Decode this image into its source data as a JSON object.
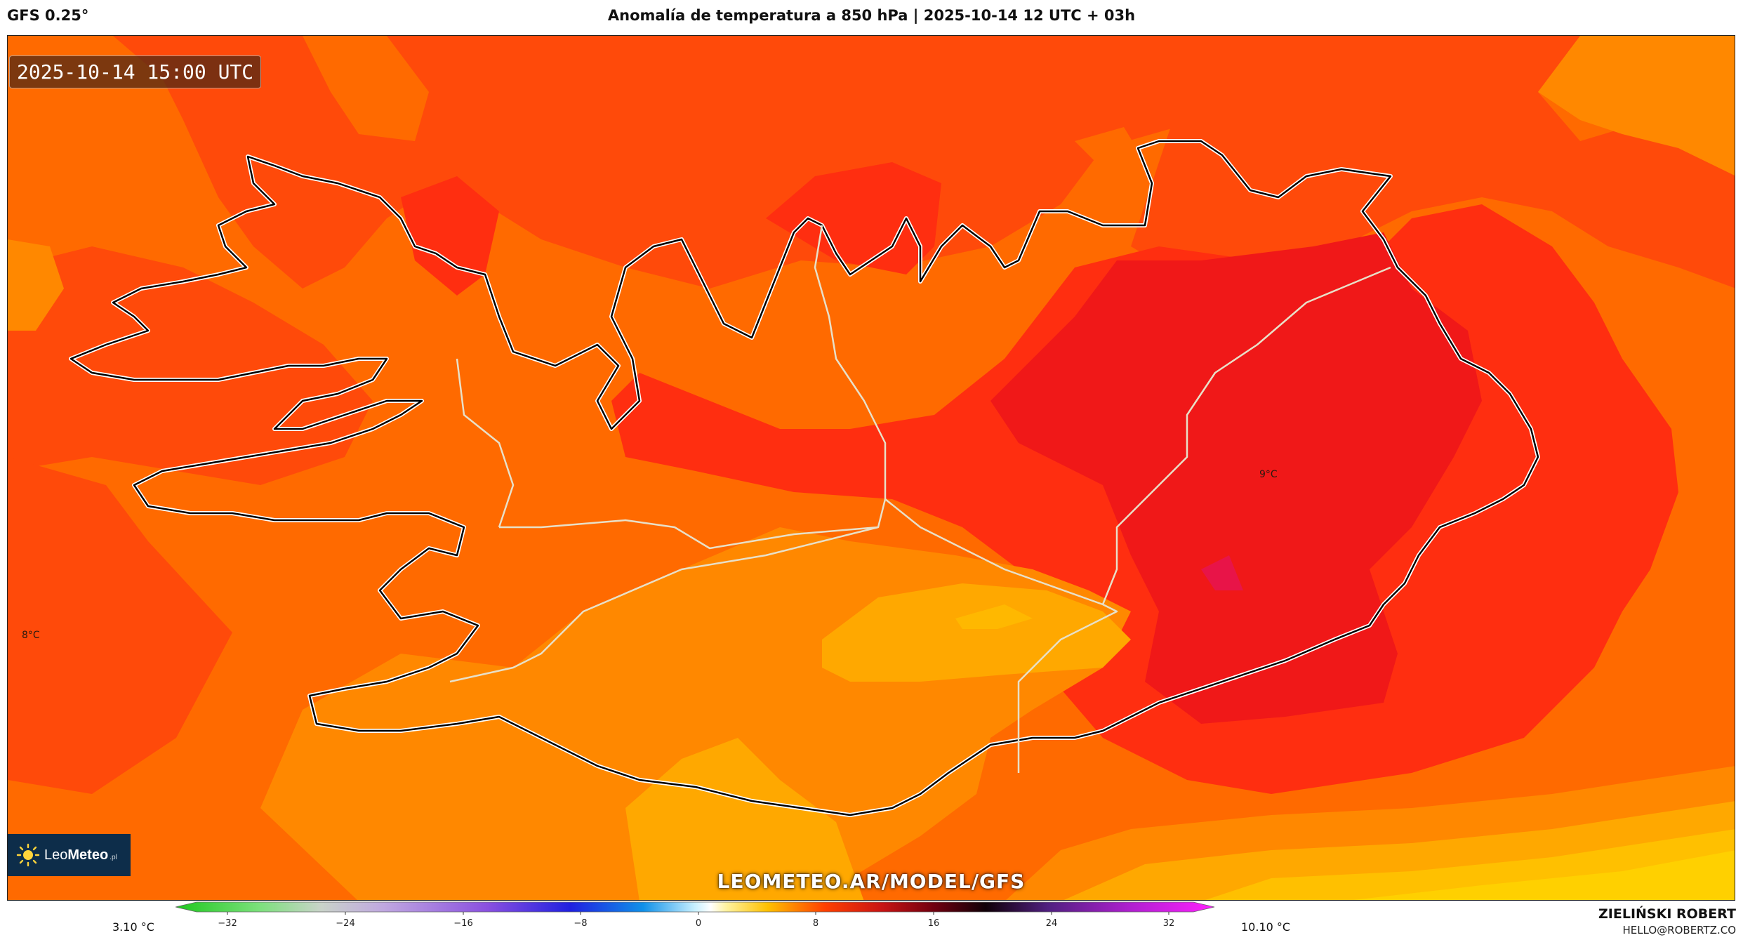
{
  "header": {
    "model": "GFS 0.25°",
    "title": "Anomalía de temperatura a 850 hPa | 2025-10-14 12 UTC + 03h"
  },
  "map": {
    "timestamp": "2025-10-14 15:00 UTC",
    "watermark": "LEOMETEO.AR/MODEL/GFS",
    "labels": {
      "west": "8°C",
      "east": "9°C"
    },
    "logo": {
      "name_light": "Leo",
      "name_bold": "Meteo",
      "tld": ".pl"
    },
    "colors": {
      "deep_red": "#f01818",
      "red": "#ff2e10",
      "red_orange": "#ff4a0a",
      "orange": "#ff6a00",
      "amber": "#ff8800",
      "yellow_orange": "#ffa800",
      "yellow": "#ffd000"
    }
  },
  "legend": {
    "min_label": "3.10 °C",
    "max_label": "10.10 °C",
    "ticks": [
      "−32",
      "−24",
      "−16",
      "−8",
      "0",
      "8",
      "16",
      "24",
      "32"
    ]
  },
  "credit": {
    "name": "ZIELIŃSKI ROBERT",
    "email": "HELLO@ROBERTZ.CO"
  }
}
